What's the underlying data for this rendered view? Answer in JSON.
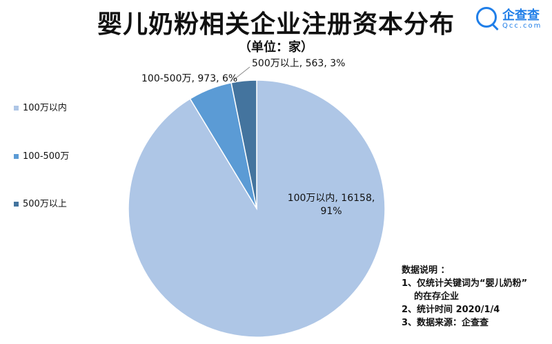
{
  "chart_data": {
    "type": "pie",
    "title": "婴儿奶粉相关企业注册资本分布",
    "subtitle": "（单位：家）",
    "legend_position": "left",
    "slices": [
      {
        "name": "100万以内",
        "value": 16158,
        "percent": "91%",
        "label": "100万以内, 16158,",
        "label2": "91%",
        "color": "#aec6e6"
      },
      {
        "name": "100-500万",
        "value": 973,
        "percent": "6%",
        "label": "100-500万, 973, 6%",
        "color": "#5b9bd5"
      },
      {
        "name": "500万以上",
        "value": 563,
        "percent": "3%",
        "label": "500万以上, 563, 3%",
        "color": "#44749e"
      }
    ]
  },
  "logo": {
    "name": "企查查",
    "sub": "Qcc.com"
  },
  "notes": {
    "heading": "数据说明 ：",
    "lines": [
      "1、仅统计关键词为“婴儿奶粉”",
      "的在存企业",
      "2、统计时间 2020/1/4",
      "3、数据来源：企查查"
    ]
  }
}
